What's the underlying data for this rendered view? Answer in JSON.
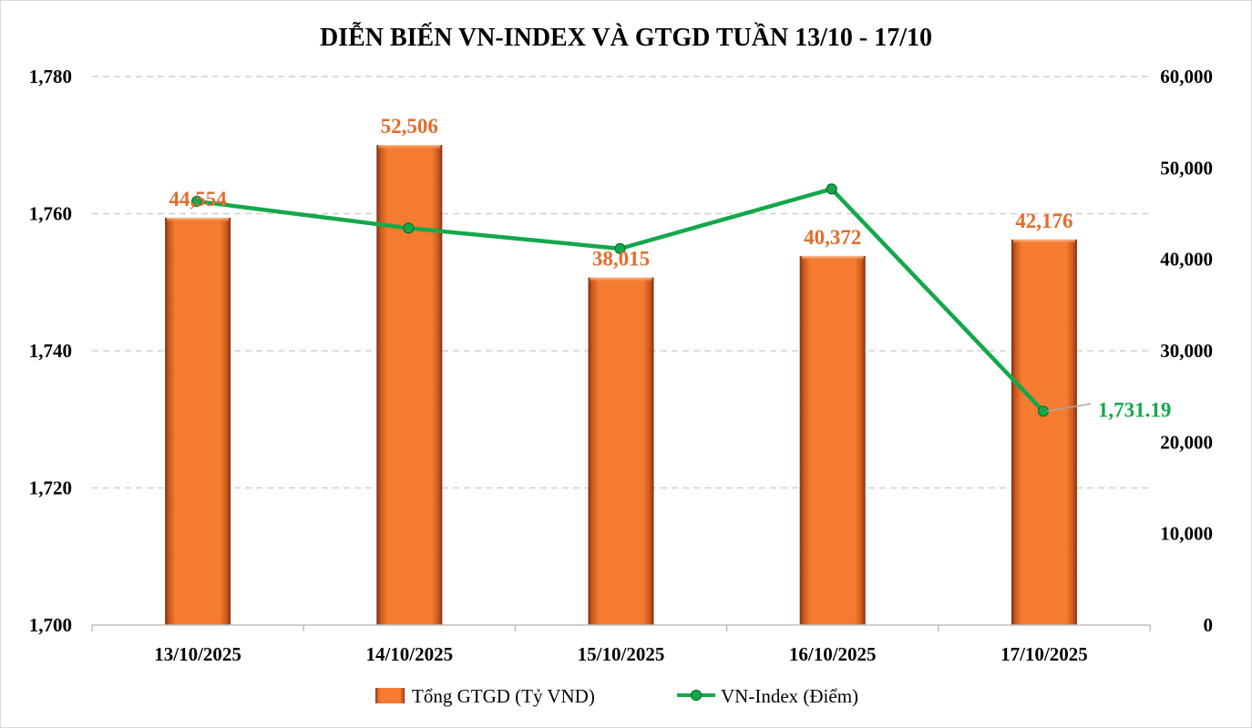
{
  "chart_data": {
    "type": "bar",
    "title": "DIỄN BIẾN VN-INDEX VÀ GTGD TUẦN 13/10 - 17/10",
    "categories": [
      "13/10/2025",
      "14/10/2025",
      "15/10/2025",
      "16/10/2025",
      "17/10/2025"
    ],
    "series": [
      {
        "name": "Tổng GTGD (Tỷ VND)",
        "type": "bar",
        "axis": "right",
        "values": [
          44554,
          52506,
          38015,
          40372,
          42176
        ],
        "value_labels": [
          "44,554",
          "52,506",
          "38,015",
          "40,372",
          "42,176"
        ],
        "color": "#F47B30",
        "label_color": "#E46C2B"
      },
      {
        "name": "VN-Index (Điểm)",
        "type": "line",
        "axis": "left",
        "values": [
          1761.8,
          1757.9,
          1754.9,
          1763.6,
          1731.19
        ],
        "last_label": "1,731.19",
        "color": "#13A84A"
      }
    ],
    "y_left": {
      "min": 1700,
      "max": 1780,
      "ticks": [
        "1,700",
        "1,720",
        "1,740",
        "1,760",
        "1,780"
      ],
      "tick_values": [
        1700,
        1720,
        1740,
        1760,
        1780
      ]
    },
    "y_right": {
      "min": 0,
      "max": 60000,
      "ticks": [
        "0",
        "10,000",
        "20,000",
        "30,000",
        "40,000",
        "50,000",
        "60,000"
      ],
      "tick_values": [
        0,
        10000,
        20000,
        30000,
        40000,
        50000,
        60000
      ]
    },
    "grid": true,
    "legend_position": "bottom"
  }
}
